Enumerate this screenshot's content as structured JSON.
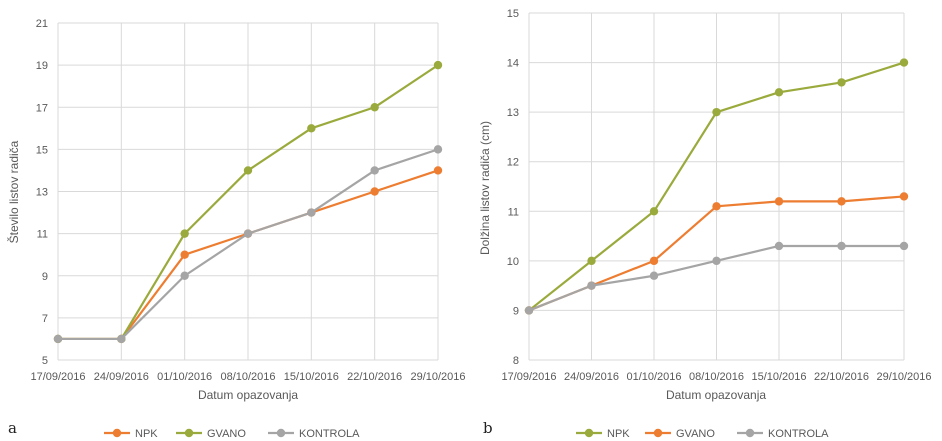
{
  "colors": {
    "orange": "#ED7D31",
    "green": "#9BAA3C",
    "gray": "#A5A5A5",
    "grid": "#D9D9D9"
  },
  "chart_data": [
    {
      "type": "line",
      "panel_label": "a",
      "xlabel": "Datum opazovanja",
      "ylabel": "Število listov radiča",
      "ylim": [
        5,
        21
      ],
      "y_ticks": [
        5,
        7,
        9,
        11,
        13,
        15,
        17,
        19,
        21
      ],
      "categories": [
        "17/09/2016",
        "24/09/2016",
        "01/10/2016",
        "08/10/2016",
        "15/10/2016",
        "22/10/2016",
        "29/10/2016"
      ],
      "grid": true,
      "legend_position": "bottom",
      "series": [
        {
          "name": "NPK",
          "color": "#ED7D31",
          "values": [
            6,
            6,
            10,
            11,
            12,
            13,
            14
          ]
        },
        {
          "name": "GVANO",
          "color": "#9BAA3C",
          "values": [
            6,
            6,
            11,
            14,
            16,
            17,
            19
          ]
        },
        {
          "name": "KONTROLA",
          "color": "#A5A5A5",
          "values": [
            6,
            6,
            9,
            11,
            12,
            14,
            15
          ]
        }
      ]
    },
    {
      "type": "line",
      "panel_label": "b",
      "xlabel": "Datum opazovanja",
      "ylabel": "Dolžina listov radiča (cm)",
      "ylim": [
        8,
        15
      ],
      "y_ticks": [
        8,
        9,
        10,
        11,
        12,
        13,
        14,
        15
      ],
      "categories": [
        "17/09/2016",
        "24/09/2016",
        "01/10/2016",
        "08/10/2016",
        "15/10/2016",
        "22/10/2016",
        "29/10/2016"
      ],
      "grid": true,
      "legend_position": "bottom",
      "series": [
        {
          "name": "NPK",
          "color": "#9BAA3C",
          "values": [
            9,
            10,
            11,
            13,
            13.4,
            13.6,
            14
          ]
        },
        {
          "name": "GVANO",
          "color": "#ED7D31",
          "values": [
            9,
            9.5,
            10,
            11.1,
            11.2,
            11.2,
            11.3
          ]
        },
        {
          "name": "KONTROLA",
          "color": "#A5A5A5",
          "values": [
            9,
            9.5,
            9.7,
            10,
            10.3,
            10.3,
            10.3
          ]
        }
      ]
    }
  ]
}
